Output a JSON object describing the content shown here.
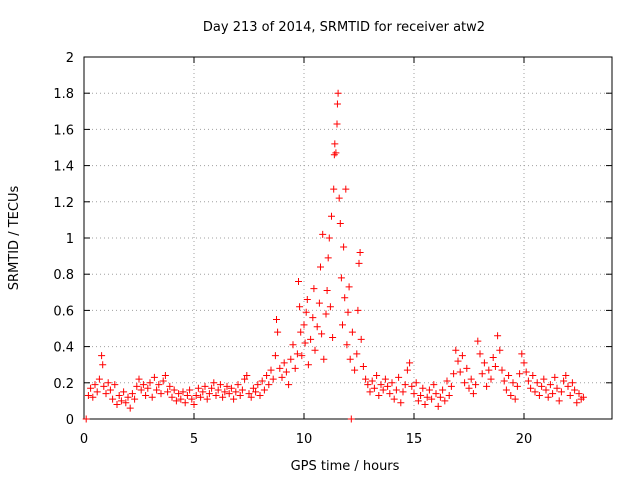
{
  "chart_data": {
    "type": "scatter",
    "title": "Day 213 of 2014, SRMTID for receiver atw2",
    "xlabel": "GPS time / hours",
    "ylabel": "SRMTID / TECUs",
    "xlim": [
      0,
      24
    ],
    "ylim": [
      0,
      2
    ],
    "xticks": [
      0,
      5,
      10,
      15,
      20
    ],
    "xtick_labels": [
      "0",
      "5",
      "10",
      "15",
      "20"
    ],
    "yticks": [
      0,
      0.2,
      0.4,
      0.6,
      0.8,
      1,
      1.2,
      1.4,
      1.6,
      1.8,
      2
    ],
    "ytick_labels": [
      "0",
      "0.2",
      "0.4",
      "0.6",
      "0.8",
      "1",
      "1.2",
      "1.4",
      "1.6",
      "1.8",
      "2"
    ],
    "grid": true,
    "marker": "+",
    "color": "#ff0000",
    "series": [
      {
        "name": "SRMTID",
        "points": [
          [
            0.1,
            0.0
          ],
          [
            12.15,
            0.0
          ],
          [
            0.2,
            0.13
          ],
          [
            0.3,
            0.17
          ],
          [
            0.4,
            0.12
          ],
          [
            0.5,
            0.19
          ],
          [
            0.6,
            0.15
          ],
          [
            0.7,
            0.22
          ],
          [
            0.8,
            0.35
          ],
          [
            0.85,
            0.3
          ],
          [
            0.9,
            0.18
          ],
          [
            1.0,
            0.14
          ],
          [
            1.1,
            0.2
          ],
          [
            1.2,
            0.16
          ],
          [
            1.3,
            0.11
          ],
          [
            1.4,
            0.19
          ],
          [
            1.5,
            0.08
          ],
          [
            1.6,
            0.13
          ],
          [
            1.7,
            0.1
          ],
          [
            1.8,
            0.15
          ],
          [
            1.9,
            0.09
          ],
          [
            2.0,
            0.12
          ],
          [
            2.1,
            0.06
          ],
          [
            2.2,
            0.14
          ],
          [
            2.3,
            0.11
          ],
          [
            2.4,
            0.18
          ],
          [
            2.5,
            0.22
          ],
          [
            2.6,
            0.16
          ],
          [
            2.7,
            0.19
          ],
          [
            2.8,
            0.13
          ],
          [
            2.9,
            0.17
          ],
          [
            3.0,
            0.2
          ],
          [
            3.1,
            0.12
          ],
          [
            3.2,
            0.23
          ],
          [
            3.3,
            0.16
          ],
          [
            3.4,
            0.19
          ],
          [
            3.5,
            0.14
          ],
          [
            3.6,
            0.21
          ],
          [
            3.7,
            0.24
          ],
          [
            3.8,
            0.15
          ],
          [
            3.9,
            0.18
          ],
          [
            4.0,
            0.12
          ],
          [
            4.1,
            0.16
          ],
          [
            4.2,
            0.1
          ],
          [
            4.3,
            0.14
          ],
          [
            4.4,
            0.11
          ],
          [
            4.5,
            0.15
          ],
          [
            4.6,
            0.09
          ],
          [
            4.7,
            0.13
          ],
          [
            4.8,
            0.16
          ],
          [
            4.9,
            0.11
          ],
          [
            5.0,
            0.08
          ],
          [
            5.1,
            0.13
          ],
          [
            5.2,
            0.17
          ],
          [
            5.3,
            0.12
          ],
          [
            5.4,
            0.15
          ],
          [
            5.5,
            0.18
          ],
          [
            5.6,
            0.11
          ],
          [
            5.7,
            0.14
          ],
          [
            5.8,
            0.17
          ],
          [
            5.9,
            0.2
          ],
          [
            6.0,
            0.13
          ],
          [
            6.1,
            0.16
          ],
          [
            6.2,
            0.19
          ],
          [
            6.3,
            0.12
          ],
          [
            6.4,
            0.15
          ],
          [
            6.5,
            0.18
          ],
          [
            6.6,
            0.14
          ],
          [
            6.7,
            0.17
          ],
          [
            6.8,
            0.11
          ],
          [
            6.9,
            0.15
          ],
          [
            7.0,
            0.19
          ],
          [
            7.1,
            0.13
          ],
          [
            7.2,
            0.16
          ],
          [
            7.3,
            0.22
          ],
          [
            7.4,
            0.24
          ],
          [
            7.5,
            0.14
          ],
          [
            7.6,
            0.12
          ],
          [
            7.7,
            0.17
          ],
          [
            7.8,
            0.15
          ],
          [
            7.9,
            0.19
          ],
          [
            8.0,
            0.13
          ],
          [
            8.1,
            0.21
          ],
          [
            8.2,
            0.16
          ],
          [
            8.3,
            0.24
          ],
          [
            8.4,
            0.19
          ],
          [
            8.5,
            0.27
          ],
          [
            8.6,
            0.22
          ],
          [
            8.7,
            0.35
          ],
          [
            8.75,
            0.55
          ],
          [
            8.8,
            0.48
          ],
          [
            8.9,
            0.28
          ],
          [
            9.0,
            0.23
          ],
          [
            9.1,
            0.31
          ],
          [
            9.2,
            0.26
          ],
          [
            9.3,
            0.19
          ],
          [
            9.4,
            0.33
          ],
          [
            9.5,
            0.41
          ],
          [
            9.6,
            0.28
          ],
          [
            9.7,
            0.36
          ],
          [
            9.75,
            0.76
          ],
          [
            9.8,
            0.62
          ],
          [
            9.85,
            0.48
          ],
          [
            9.9,
            0.35
          ],
          [
            10.0,
            0.52
          ],
          [
            10.05,
            0.42
          ],
          [
            10.1,
            0.59
          ],
          [
            10.15,
            0.66
          ],
          [
            10.2,
            0.3
          ],
          [
            10.3,
            0.44
          ],
          [
            10.4,
            0.56
          ],
          [
            10.45,
            0.72
          ],
          [
            10.5,
            0.38
          ],
          [
            10.6,
            0.51
          ],
          [
            10.7,
            0.64
          ],
          [
            10.75,
            0.84
          ],
          [
            10.8,
            0.47
          ],
          [
            10.85,
            1.02
          ],
          [
            10.9,
            0.33
          ],
          [
            11.0,
            0.58
          ],
          [
            11.05,
            0.71
          ],
          [
            11.1,
            0.89
          ],
          [
            11.15,
            1.0
          ],
          [
            11.2,
            0.62
          ],
          [
            11.25,
            1.12
          ],
          [
            11.3,
            0.45
          ],
          [
            11.35,
            1.27
          ],
          [
            11.38,
            1.46
          ],
          [
            11.4,
            1.52
          ],
          [
            11.45,
            1.47
          ],
          [
            11.5,
            1.63
          ],
          [
            11.52,
            1.74
          ],
          [
            11.55,
            1.8
          ],
          [
            11.6,
            1.22
          ],
          [
            11.65,
            1.08
          ],
          [
            11.7,
            0.78
          ],
          [
            11.75,
            0.52
          ],
          [
            11.8,
            0.95
          ],
          [
            11.85,
            0.67
          ],
          [
            11.9,
            1.27
          ],
          [
            11.95,
            0.41
          ],
          [
            12.0,
            0.59
          ],
          [
            12.05,
            0.73
          ],
          [
            12.1,
            0.33
          ],
          [
            12.2,
            0.48
          ],
          [
            12.3,
            0.27
          ],
          [
            12.4,
            0.36
          ],
          [
            12.45,
            0.6
          ],
          [
            12.5,
            0.86
          ],
          [
            12.55,
            0.92
          ],
          [
            12.6,
            0.44
          ],
          [
            12.7,
            0.29
          ],
          [
            12.8,
            0.22
          ],
          [
            12.9,
            0.19
          ],
          [
            13.0,
            0.15
          ],
          [
            13.1,
            0.21
          ],
          [
            13.2,
            0.17
          ],
          [
            13.3,
            0.24
          ],
          [
            13.4,
            0.13
          ],
          [
            13.5,
            0.19
          ],
          [
            13.6,
            0.16
          ],
          [
            13.7,
            0.22
          ],
          [
            13.8,
            0.18
          ],
          [
            13.9,
            0.14
          ],
          [
            14.0,
            0.2
          ],
          [
            14.1,
            0.11
          ],
          [
            14.2,
            0.16
          ],
          [
            14.3,
            0.23
          ],
          [
            14.4,
            0.09
          ],
          [
            14.5,
            0.15
          ],
          [
            14.6,
            0.19
          ],
          [
            14.7,
            0.27
          ],
          [
            14.8,
            0.31
          ],
          [
            14.9,
            0.18
          ],
          [
            15.0,
            0.14
          ],
          [
            15.1,
            0.2
          ],
          [
            15.2,
            0.1
          ],
          [
            15.3,
            0.13
          ],
          [
            15.4,
            0.17
          ],
          [
            15.5,
            0.08
          ],
          [
            15.6,
            0.12
          ],
          [
            15.7,
            0.16
          ],
          [
            15.8,
            0.11
          ],
          [
            15.9,
            0.19
          ],
          [
            16.0,
            0.14
          ],
          [
            16.1,
            0.07
          ],
          [
            16.2,
            0.12
          ],
          [
            16.3,
            0.16
          ],
          [
            16.4,
            0.1
          ],
          [
            16.5,
            0.21
          ],
          [
            16.6,
            0.13
          ],
          [
            16.7,
            0.18
          ],
          [
            16.8,
            0.25
          ],
          [
            16.9,
            0.38
          ],
          [
            17.0,
            0.32
          ],
          [
            17.1,
            0.26
          ],
          [
            17.2,
            0.35
          ],
          [
            17.3,
            0.2
          ],
          [
            17.4,
            0.28
          ],
          [
            17.5,
            0.17
          ],
          [
            17.6,
            0.22
          ],
          [
            17.7,
            0.14
          ],
          [
            17.8,
            0.19
          ],
          [
            17.9,
            0.43
          ],
          [
            18.0,
            0.36
          ],
          [
            18.1,
            0.25
          ],
          [
            18.2,
            0.31
          ],
          [
            18.3,
            0.18
          ],
          [
            18.4,
            0.27
          ],
          [
            18.5,
            0.22
          ],
          [
            18.6,
            0.34
          ],
          [
            18.7,
            0.29
          ],
          [
            18.8,
            0.46
          ],
          [
            18.9,
            0.38
          ],
          [
            19.0,
            0.27
          ],
          [
            19.1,
            0.21
          ],
          [
            19.2,
            0.16
          ],
          [
            19.3,
            0.24
          ],
          [
            19.4,
            0.13
          ],
          [
            19.5,
            0.2
          ],
          [
            19.6,
            0.11
          ],
          [
            19.7,
            0.18
          ],
          [
            19.8,
            0.25
          ],
          [
            19.9,
            0.36
          ],
          [
            20.0,
            0.31
          ],
          [
            20.1,
            0.26
          ],
          [
            20.2,
            0.21
          ],
          [
            20.3,
            0.17
          ],
          [
            20.4,
            0.24
          ],
          [
            20.5,
            0.15
          ],
          [
            20.6,
            0.2
          ],
          [
            20.7,
            0.13
          ],
          [
            20.8,
            0.18
          ],
          [
            20.9,
            0.22
          ],
          [
            21.0,
            0.16
          ],
          [
            21.1,
            0.12
          ],
          [
            21.2,
            0.19
          ],
          [
            21.3,
            0.14
          ],
          [
            21.4,
            0.23
          ],
          [
            21.5,
            0.17
          ],
          [
            21.6,
            0.1
          ],
          [
            21.7,
            0.15
          ],
          [
            21.8,
            0.21
          ],
          [
            21.9,
            0.24
          ],
          [
            22.0,
            0.18
          ],
          [
            22.1,
            0.13
          ],
          [
            22.2,
            0.2
          ],
          [
            22.3,
            0.16
          ],
          [
            22.4,
            0.09
          ],
          [
            22.5,
            0.14
          ],
          [
            22.6,
            0.11
          ],
          [
            22.7,
            0.12
          ]
        ]
      }
    ]
  }
}
